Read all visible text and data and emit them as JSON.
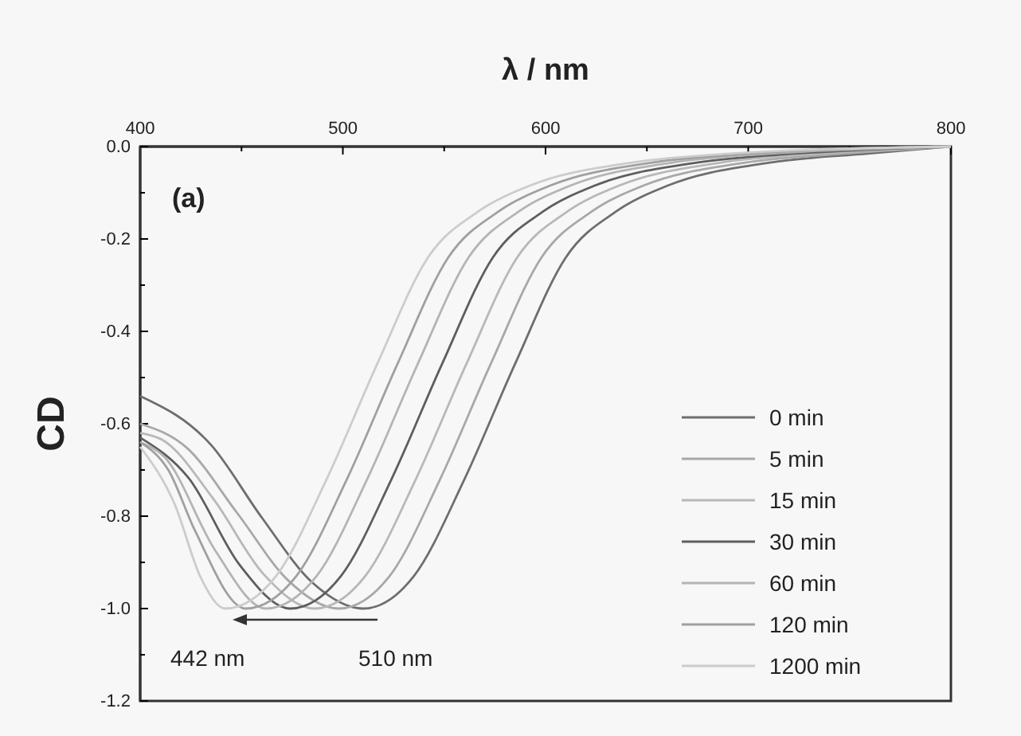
{
  "chart_data": {
    "type": "line",
    "xlabel": "λ / nm",
    "ylabel": "CD",
    "xlim": [
      400,
      800
    ],
    "ylim": [
      -1.2,
      0
    ],
    "xticks": [
      400,
      {
        "value": 450,
        "label": null
      },
      500,
      {
        "value": 550,
        "label": null
      },
      600,
      {
        "value": 650,
        "label": null
      },
      700,
      {
        "value": 750,
        "label": null
      },
      800
    ],
    "yticks": [
      {
        "value": 0,
        "label": "0.0"
      },
      {
        "value": -0.1,
        "label": null
      },
      {
        "value": -0.2,
        "label": "-0.2"
      },
      {
        "value": -0.3,
        "label": null
      },
      {
        "value": -0.4,
        "label": "-0.4"
      },
      {
        "value": -0.5,
        "label": null
      },
      {
        "value": -0.6,
        "label": "-0.6"
      },
      {
        "value": -0.7,
        "label": null
      },
      {
        "value": -0.8,
        "label": "-0.8"
      },
      {
        "value": -0.9,
        "label": null
      },
      {
        "value": -1.0,
        "label": "-1.0"
      },
      {
        "value": -1.1,
        "label": null
      },
      {
        "value": -1.2,
        "label": "-1.2"
      }
    ],
    "grid": false,
    "legend": "right",
    "line_style": "solid",
    "annotations": [
      "(a)",
      "442 nm",
      "510 nm"
    ],
    "series": [
      {
        "name": "0 min",
        "color": "#6e6e6e",
        "x": [
          400,
          435,
          460,
          485,
          510,
          535,
          560,
          585,
          610,
          635,
          660,
          710,
          760,
          800
        ],
        "values": [
          -0.54,
          -0.646,
          -0.803,
          -0.944,
          -1.0,
          -0.93,
          -0.72,
          -0.47,
          -0.24,
          -0.14,
          -0.085,
          -0.035,
          -0.015,
          0
        ]
      },
      {
        "name": "5 min",
        "color": "#a8a8a8",
        "x": [
          400,
          423,
          448,
          473,
          498,
          523,
          548,
          573,
          598,
          623,
          648,
          698,
          748,
          800
        ],
        "values": [
          -0.6,
          -0.652,
          -0.794,
          -0.939,
          -1.0,
          -0.93,
          -0.72,
          -0.47,
          -0.24,
          -0.14,
          -0.085,
          -0.035,
          -0.015,
          0
        ]
      },
      {
        "name": "15 min",
        "color": "#b8b8b8",
        "x": [
          400,
          411,
          436,
          461,
          486,
          511,
          536,
          561,
          586,
          611,
          636,
          686,
          736,
          800
        ],
        "values": [
          -0.62,
          -0.635,
          -0.762,
          -0.926,
          -1.0,
          -0.93,
          -0.72,
          -0.47,
          -0.24,
          -0.14,
          -0.085,
          -0.035,
          -0.015,
          0
        ]
      },
      {
        "name": "30 min",
        "color": "#5e5e5e",
        "x": [
          400,
          424,
          449,
          474,
          499,
          524,
          549,
          574,
          599,
          624,
          674,
          724,
          800
        ],
        "values": [
          -0.63,
          -0.718,
          -0.905,
          -1.0,
          -0.93,
          -0.72,
          -0.47,
          -0.24,
          -0.14,
          -0.085,
          -0.035,
          -0.015,
          0
        ]
      },
      {
        "name": "60 min",
        "color": "#b4b4b4",
        "x": [
          400,
          412,
          437,
          462,
          487,
          512,
          537,
          562,
          587,
          612,
          662,
          712,
          800
        ],
        "values": [
          -0.64,
          -0.672,
          -0.874,
          -1.0,
          -0.93,
          -0.72,
          -0.47,
          -0.24,
          -0.14,
          -0.085,
          -0.035,
          -0.015,
          0
        ]
      },
      {
        "name": "120 min",
        "color": "#a0a0a0",
        "x": [
          400,
          414,
          427,
          452,
          477,
          502,
          527,
          552,
          577,
          602,
          652,
          702,
          800
        ],
        "values": [
          -0.64,
          -0.701,
          -0.831,
          -1.0,
          -0.93,
          -0.72,
          -0.47,
          -0.24,
          -0.14,
          -0.085,
          -0.035,
          -0.015,
          0
        ]
      },
      {
        "name": "1200 min",
        "color": "#cccccc",
        "x": [
          400,
          417,
          430,
          442,
          467,
          492,
          517,
          542,
          567,
          592,
          642,
          692,
          800
        ],
        "values": [
          -0.65,
          -0.774,
          -0.934,
          -1.0,
          -0.93,
          -0.72,
          -0.47,
          -0.24,
          -0.14,
          -0.085,
          -0.035,
          -0.015,
          0
        ]
      }
    ]
  }
}
